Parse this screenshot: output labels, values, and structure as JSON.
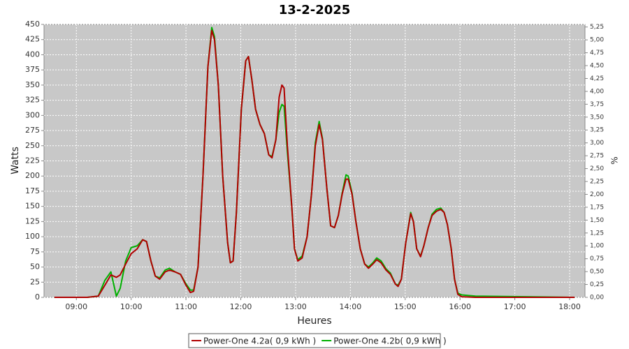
{
  "chart_data": {
    "type": "line",
    "title": "13-2-2025",
    "x_label": "Heures",
    "y_label": "Watts",
    "y2_label": "%",
    "x": [
      8.6,
      9.2,
      9.4,
      9.52,
      9.63,
      9.73,
      9.8,
      9.9,
      10.0,
      10.11,
      10.21,
      10.28,
      10.36,
      10.44,
      10.52,
      10.62,
      10.7,
      10.8,
      10.9,
      11.0,
      11.08,
      11.14,
      11.22,
      11.31,
      11.4,
      11.47,
      11.52,
      11.59,
      11.67,
      11.76,
      11.81,
      11.86,
      11.92,
      12.01,
      12.09,
      12.14,
      12.2,
      12.27,
      12.35,
      12.43,
      12.51,
      12.57,
      12.64,
      12.7,
      12.75,
      12.79,
      12.85,
      12.93,
      12.98,
      13.04,
      13.12,
      13.21,
      13.29,
      13.36,
      13.43,
      13.49,
      13.57,
      13.64,
      13.71,
      13.78,
      13.85,
      13.92,
      13.96,
      14.03,
      14.1,
      14.18,
      14.26,
      14.33,
      14.41,
      14.48,
      14.56,
      14.65,
      14.73,
      14.82,
      14.87,
      14.93,
      15.01,
      15.1,
      15.15,
      15.21,
      15.28,
      15.34,
      15.42,
      15.49,
      15.57,
      15.65,
      15.71,
      15.77,
      15.84,
      15.9,
      15.96,
      16.03,
      16.28,
      18.09
    ],
    "series": [
      {
        "name": "Power-One 4.2a( 0,9 kWh )",
        "color": "#b00000",
        "values": [
          0,
          0,
          2,
          20,
          37,
          33,
          37,
          55,
          72,
          80,
          95,
          92,
          60,
          35,
          30,
          42,
          45,
          42,
          38,
          20,
          8,
          10,
          50,
          200,
          380,
          440,
          425,
          350,
          200,
          90,
          57,
          60,
          140,
          310,
          390,
          397,
          360,
          310,
          285,
          270,
          235,
          230,
          260,
          330,
          350,
          345,
          250,
          150,
          80,
          60,
          65,
          100,
          170,
          250,
          285,
          260,
          180,
          118,
          115,
          135,
          170,
          195,
          195,
          170,
          125,
          80,
          55,
          48,
          55,
          62,
          57,
          45,
          38,
          22,
          18,
          30,
          90,
          138,
          125,
          80,
          67,
          85,
          115,
          135,
          142,
          145,
          140,
          120,
          80,
          30,
          5,
          1,
          0,
          0
        ]
      },
      {
        "name": "Power-One 4.2b( 0,9 kWh )",
        "color": "#00b000",
        "values": [
          0,
          0,
          2,
          28,
          42,
          2,
          15,
          60,
          82,
          85,
          95,
          92,
          60,
          35,
          32,
          45,
          48,
          42,
          38,
          22,
          12,
          12,
          50,
          200,
          380,
          445,
          430,
          350,
          200,
          90,
          57,
          60,
          140,
          310,
          390,
          397,
          360,
          310,
          285,
          270,
          235,
          232,
          260,
          305,
          318,
          315,
          240,
          150,
          80,
          62,
          68,
          100,
          170,
          255,
          290,
          262,
          180,
          118,
          115,
          135,
          172,
          202,
          200,
          172,
          125,
          80,
          55,
          50,
          57,
          65,
          60,
          47,
          40,
          22,
          20,
          30,
          90,
          140,
          125,
          80,
          68,
          85,
          115,
          137,
          145,
          147,
          140,
          120,
          80,
          30,
          7,
          4,
          2,
          0
        ]
      }
    ],
    "xlim": [
      8.41,
      18.28
    ],
    "xticks": [
      {
        "value": 9,
        "label": "09:00"
      },
      {
        "value": 10,
        "label": "10:00"
      },
      {
        "value": 11,
        "label": "11:00"
      },
      {
        "value": 12,
        "label": "12:00"
      },
      {
        "value": 13,
        "label": "13:00"
      },
      {
        "value": 14,
        "label": "14:00"
      },
      {
        "value": 15,
        "label": "15:00"
      },
      {
        "value": 16,
        "label": "16:00"
      },
      {
        "value": 17,
        "label": "17:00"
      },
      {
        "value": 18,
        "label": "18:00"
      }
    ],
    "ylim": [
      0,
      450
    ],
    "yticks": [
      0,
      25,
      50,
      75,
      100,
      125,
      150,
      175,
      200,
      225,
      250,
      275,
      300,
      325,
      350,
      375,
      400,
      425,
      450
    ],
    "y2lim": [
      0,
      5.3
    ],
    "y2ticks": [
      {
        "value": 0,
        "label": "0,00"
      },
      {
        "value": 0.25,
        "label": "0,25"
      },
      {
        "value": 0.5,
        "label": "0,50"
      },
      {
        "value": 0.75,
        "label": "0,75"
      },
      {
        "value": 1,
        "label": "1,00"
      },
      {
        "value": 1.25,
        "label": "1,25"
      },
      {
        "value": 1.5,
        "label": "1,50"
      },
      {
        "value": 1.75,
        "label": "1,75"
      },
      {
        "value": 2,
        "label": "2,00"
      },
      {
        "value": 2.25,
        "label": "2,25"
      },
      {
        "value": 2.5,
        "label": "2,50"
      },
      {
        "value": 2.75,
        "label": "2,75"
      },
      {
        "value": 3,
        "label": "3,00"
      },
      {
        "value": 3.25,
        "label": "3,25"
      },
      {
        "value": 3.5,
        "label": "3,50"
      },
      {
        "value": 3.75,
        "label": "3,75"
      },
      {
        "value": 4,
        "label": "4,00"
      },
      {
        "value": 4.25,
        "label": "4,25"
      },
      {
        "value": 4.5,
        "label": "4,50"
      },
      {
        "value": 4.75,
        "label": "4,75"
      },
      {
        "value": 5,
        "label": "5,00"
      },
      {
        "value": 5.25,
        "label": "5,25"
      }
    ],
    "grid": true,
    "legend": "bottom"
  }
}
